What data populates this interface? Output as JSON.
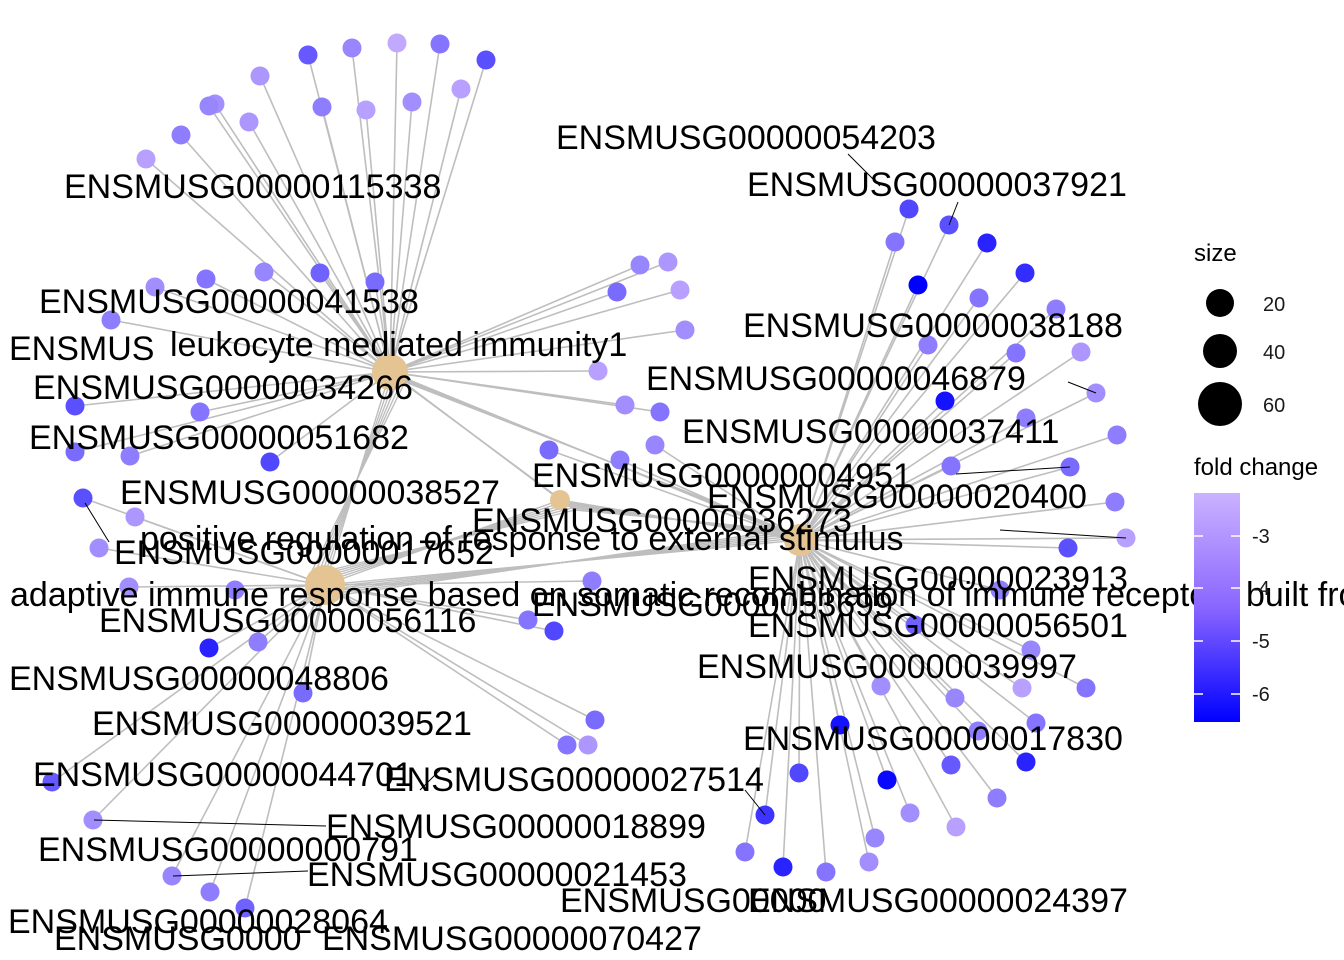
{
  "graph": {
    "categories": [
      {
        "id": "leukocyte",
        "label": "leukocyte mediated immunity1"
      },
      {
        "id": "positive",
        "label": "positive regulation of response to external stimulus"
      },
      {
        "id": "adaptive",
        "label": "adaptive immune response based on somatic recombination of immune receptors built from immunoglobulin superfamily domains"
      },
      {
        "id": "hub",
        "label": ""
      }
    ],
    "gene_labels": [
      "ENSMUSG00000054203",
      "ENSMUSG00000037921",
      "ENSMUSG00000115338",
      "ENSMUSG00000041538",
      "ENSMUSG00000034266",
      "ENSMUSG00000051682",
      "ENSMUSG00000038527",
      "ENSMUSG00000017652",
      "ENSMUSG00000056116",
      "ENSMUSG00000048806",
      "ENSMUSG00000039521",
      "ENSMUSG00000044701",
      "ENSMUSG00000000791",
      "ENSMUSG00000028064",
      "ENSMUSG00000070427",
      "ENSMUSG00000018899",
      "ENSMUSG00000021453",
      "ENSMUSG00000027514",
      "ENSMUSG00000066677",
      "ENSMUSG00000024397",
      "ENSMUSG00000038188",
      "ENSMUSG00000046879",
      "ENSMUSG00000037411",
      "ENSMUSG00000004951",
      "ENSMUSG00000020400",
      "ENSMUSG00000036273",
      "ENSMUSG00000023913",
      "ENSMUSG00000056501",
      "ENSMUSG00000039997",
      "ENSMUSG00000017830",
      "ENSMUS",
      "ENSMUSG00000",
      "ENSMUSG0000",
      "ENSMUSG0000053699"
    ]
  },
  "legend": {
    "size_title": "size",
    "size_values": [
      "20",
      "40",
      "60"
    ],
    "color_title": "fold change",
    "color_ticks": [
      "-3",
      "-4",
      "-5",
      "-6"
    ],
    "color_low": "#0000FF",
    "color_high": "#CBB2FF",
    "category_node_color": "#E5C494",
    "edge_color": "#BEBEBE"
  }
}
